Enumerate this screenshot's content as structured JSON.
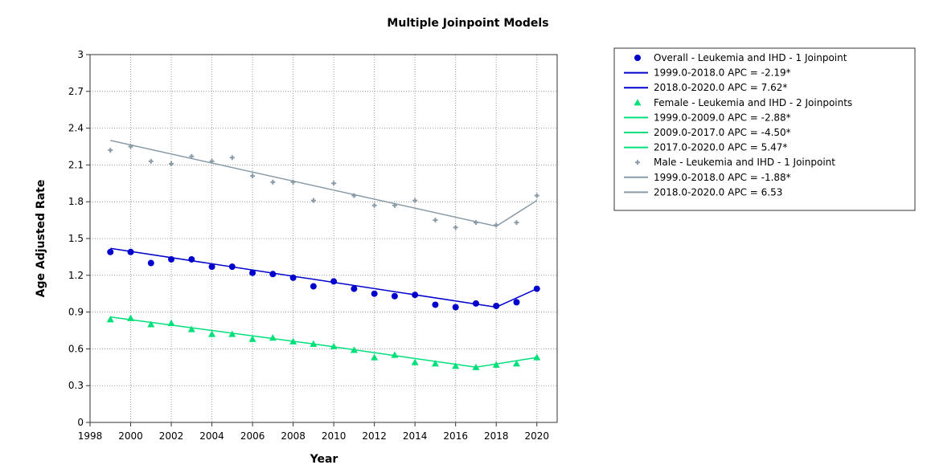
{
  "chart_data": {
    "type": "scatter",
    "title": "Multiple Joinpoint Models",
    "xlabel": "Year",
    "ylabel": "Age Adjusted Rate",
    "xlim": [
      1998,
      2021
    ],
    "ylim": [
      0,
      3
    ],
    "xticks": [
      1998,
      2000,
      2002,
      2004,
      2006,
      2008,
      2010,
      2012,
      2014,
      2016,
      2018,
      2020
    ],
    "yticks": [
      0,
      0.3,
      0.6,
      0.9,
      1.2,
      1.5,
      1.8,
      2.1,
      2.4,
      2.7,
      3
    ],
    "grid": true,
    "legend_position": "right",
    "series": [
      {
        "name": "Overall - Leukemia and IHD - 1 Joinpoint",
        "marker": "circle",
        "color": "#0000cc",
        "x": [
          1999,
          2000,
          2001,
          2002,
          2003,
          2004,
          2005,
          2006,
          2007,
          2008,
          2009,
          2010,
          2011,
          2012,
          2013,
          2014,
          2015,
          2016,
          2017,
          2018,
          2019,
          2020
        ],
        "y": [
          1.39,
          1.39,
          1.3,
          1.33,
          1.33,
          1.27,
          1.27,
          1.22,
          1.21,
          1.18,
          1.11,
          1.15,
          1.09,
          1.05,
          1.03,
          1.04,
          0.96,
          0.94,
          0.97,
          0.95,
          0.98,
          1.09
        ],
        "fit": [
          {
            "x": 1999,
            "y": 1.42
          },
          {
            "x": 2018,
            "y": 0.94
          },
          {
            "x": 2020,
            "y": 1.09
          }
        ],
        "segments": [
          {
            "label": "1999.0-2018.0 APC  = -2.19*"
          },
          {
            "label": "2018.0-2020.0 APC  =  7.62*"
          }
        ]
      },
      {
        "name": "Female - Leukemia and IHD - 2 Joinpoints",
        "marker": "triangle",
        "color": "#00e07a",
        "x": [
          1999,
          2000,
          2001,
          2002,
          2003,
          2004,
          2005,
          2006,
          2007,
          2008,
          2009,
          2010,
          2011,
          2012,
          2013,
          2014,
          2015,
          2016,
          2017,
          2018,
          2019,
          2020
        ],
        "y": [
          0.84,
          0.85,
          0.8,
          0.81,
          0.76,
          0.72,
          0.72,
          0.68,
          0.69,
          0.66,
          0.64,
          0.62,
          0.59,
          0.53,
          0.55,
          0.49,
          0.48,
          0.46,
          0.45,
          0.47,
          0.48,
          0.53
        ],
        "fit": [
          {
            "x": 1999,
            "y": 0.86
          },
          {
            "x": 2009,
            "y": 0.64
          },
          {
            "x": 2017,
            "y": 0.45
          },
          {
            "x": 2020,
            "y": 0.53
          }
        ],
        "segments": [
          {
            "label": "1999.0-2009.0 APC  = -2.88*"
          },
          {
            "label": "2009.0-2017.0 APC  = -4.50*"
          },
          {
            "label": "2017.0-2020.0 APC  =  5.47*"
          }
        ]
      },
      {
        "name": "Male - Leukemia and IHD - 1 Joinpoint",
        "marker": "plus",
        "color": "#8a9ba8",
        "x": [
          1999,
          2000,
          2001,
          2002,
          2003,
          2004,
          2005,
          2006,
          2007,
          2008,
          2009,
          2010,
          2011,
          2012,
          2013,
          2014,
          2015,
          2016,
          2017,
          2018,
          2019,
          2020
        ],
        "y": [
          2.22,
          2.25,
          2.13,
          2.11,
          2.17,
          2.13,
          2.16,
          2.01,
          1.96,
          1.96,
          1.81,
          1.95,
          1.85,
          1.77,
          1.77,
          1.81,
          1.65,
          1.59,
          1.63,
          1.61,
          1.63,
          1.85
        ],
        "fit": [
          {
            "x": 1999,
            "y": 2.3
          },
          {
            "x": 2018,
            "y": 1.6
          },
          {
            "x": 2020,
            "y": 1.81
          }
        ],
        "segments": [
          {
            "label": "1999.0-2018.0 APC  = -1.88*"
          },
          {
            "label": "2018.0-2020.0 APC  =  6.53"
          }
        ]
      }
    ]
  }
}
